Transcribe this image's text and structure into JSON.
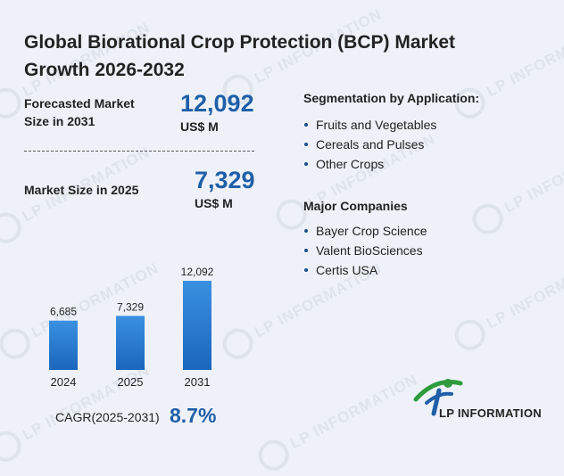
{
  "title": "Global Biorational Crop Protection (BCP) Market Growth 2026-2032",
  "forecast": {
    "label": "Forecasted Market Size in 2031",
    "label_line1": "Forecasted Market",
    "label_line2": "Size in 2031",
    "value": "12,092",
    "unit": "US$ M"
  },
  "current": {
    "label": "Market Size in 2025",
    "value": "7,329",
    "unit": "US$ M"
  },
  "segmentation": {
    "title": "Segmentation by Application:",
    "items": [
      "Fruits and Vegetables",
      "Cereals and Pulses",
      "Other Crops"
    ]
  },
  "companies": {
    "title": "Major Companies",
    "items": [
      "Bayer Crop Science",
      "Valent BioSciences",
      "Certis USA"
    ]
  },
  "cagr": {
    "label": "CAGR(2025-2031)",
    "value": "8.7%"
  },
  "watermark_text": "LP INFORMATION",
  "logo_text": "LP INFORMATION",
  "colors": {
    "accent": "#1f5fa8",
    "bar_top": "#2f86d9",
    "bar_bottom": "#1d6fc4",
    "logo_green": "#2e9b3c"
  },
  "chart_data": {
    "type": "bar",
    "categories": [
      "2024",
      "2025",
      "2031"
    ],
    "values": [
      6685,
      7329,
      12092
    ],
    "data_labels": [
      "6,685",
      "7,329",
      "12,092"
    ],
    "title": "",
    "xlabel": "",
    "ylabel": ""
  }
}
